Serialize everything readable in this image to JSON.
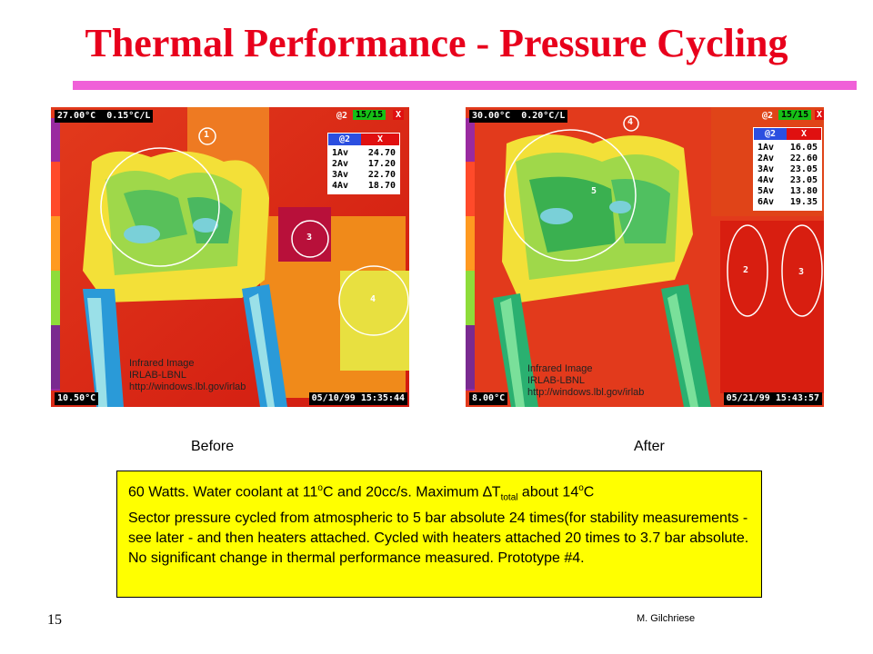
{
  "slide": {
    "title": "Thermal Performance - Pressure Cycling",
    "page_number": "15",
    "author": "M. Gilchriese"
  },
  "before": {
    "caption": "Before",
    "temp_high": "27.00°C",
    "scale": "0.15°C/L",
    "temp_low": "10.50°C",
    "timestamp": "05/10/99 15:35:44",
    "counter": "15/15",
    "panel_id": "@2",
    "panel_close": "X",
    "readings": [
      {
        "label": "1Av",
        "value": "24.70"
      },
      {
        "label": "2Av",
        "value": "17.20"
      },
      {
        "label": "3Av",
        "value": "22.70"
      },
      {
        "label": "4Av",
        "value": "18.70"
      }
    ],
    "markers": [
      "1",
      "3",
      "4"
    ],
    "watermark": [
      "Infrared Image",
      "IRLAB-LBNL",
      "http://windows.lbl.gov/irlab"
    ]
  },
  "after": {
    "caption": "After",
    "temp_high": "30.00°C",
    "scale": "0.20°C/L",
    "temp_low": "8.00°C",
    "timestamp": "05/21/99 15:43:57",
    "counter": "15/15",
    "panel_id": "@2",
    "panel_close": "X",
    "readings": [
      {
        "label": "1Av",
        "value": "16.05"
      },
      {
        "label": "2Av",
        "value": "22.60"
      },
      {
        "label": "3Av",
        "value": "23.05"
      },
      {
        "label": "4Av",
        "value": "23.05"
      },
      {
        "label": "5Av",
        "value": "13.80"
      },
      {
        "label": "6Av",
        "value": "19.35"
      }
    ],
    "markers": [
      "4",
      "5",
      "2",
      "3"
    ],
    "watermark": [
      "Infrared Image",
      "IRLAB-LBNL",
      "http://windows.lbl.gov/irlab"
    ]
  },
  "description": {
    "line1_prefix": "60 Watts. Water coolant at 11",
    "sup_o": "o",
    "line1_mid": "C and 20cc/s. Maximum ",
    "delta": "∆T",
    "sub_total": "total",
    "line1_mid2": " about 14",
    "line1_end": "C",
    "rest": "Sector pressure cycled from atmospheric to 5 bar absolute 24 times(for stability measurements - see later - and then heaters attached. Cycled with heaters attached 20 times to 3.7 bar absolute. No significant change in thermal performance measured. Prototype #4."
  },
  "colors": {
    "title": "#e8001c",
    "rule": "#f060d8",
    "box": "#ffff00"
  }
}
